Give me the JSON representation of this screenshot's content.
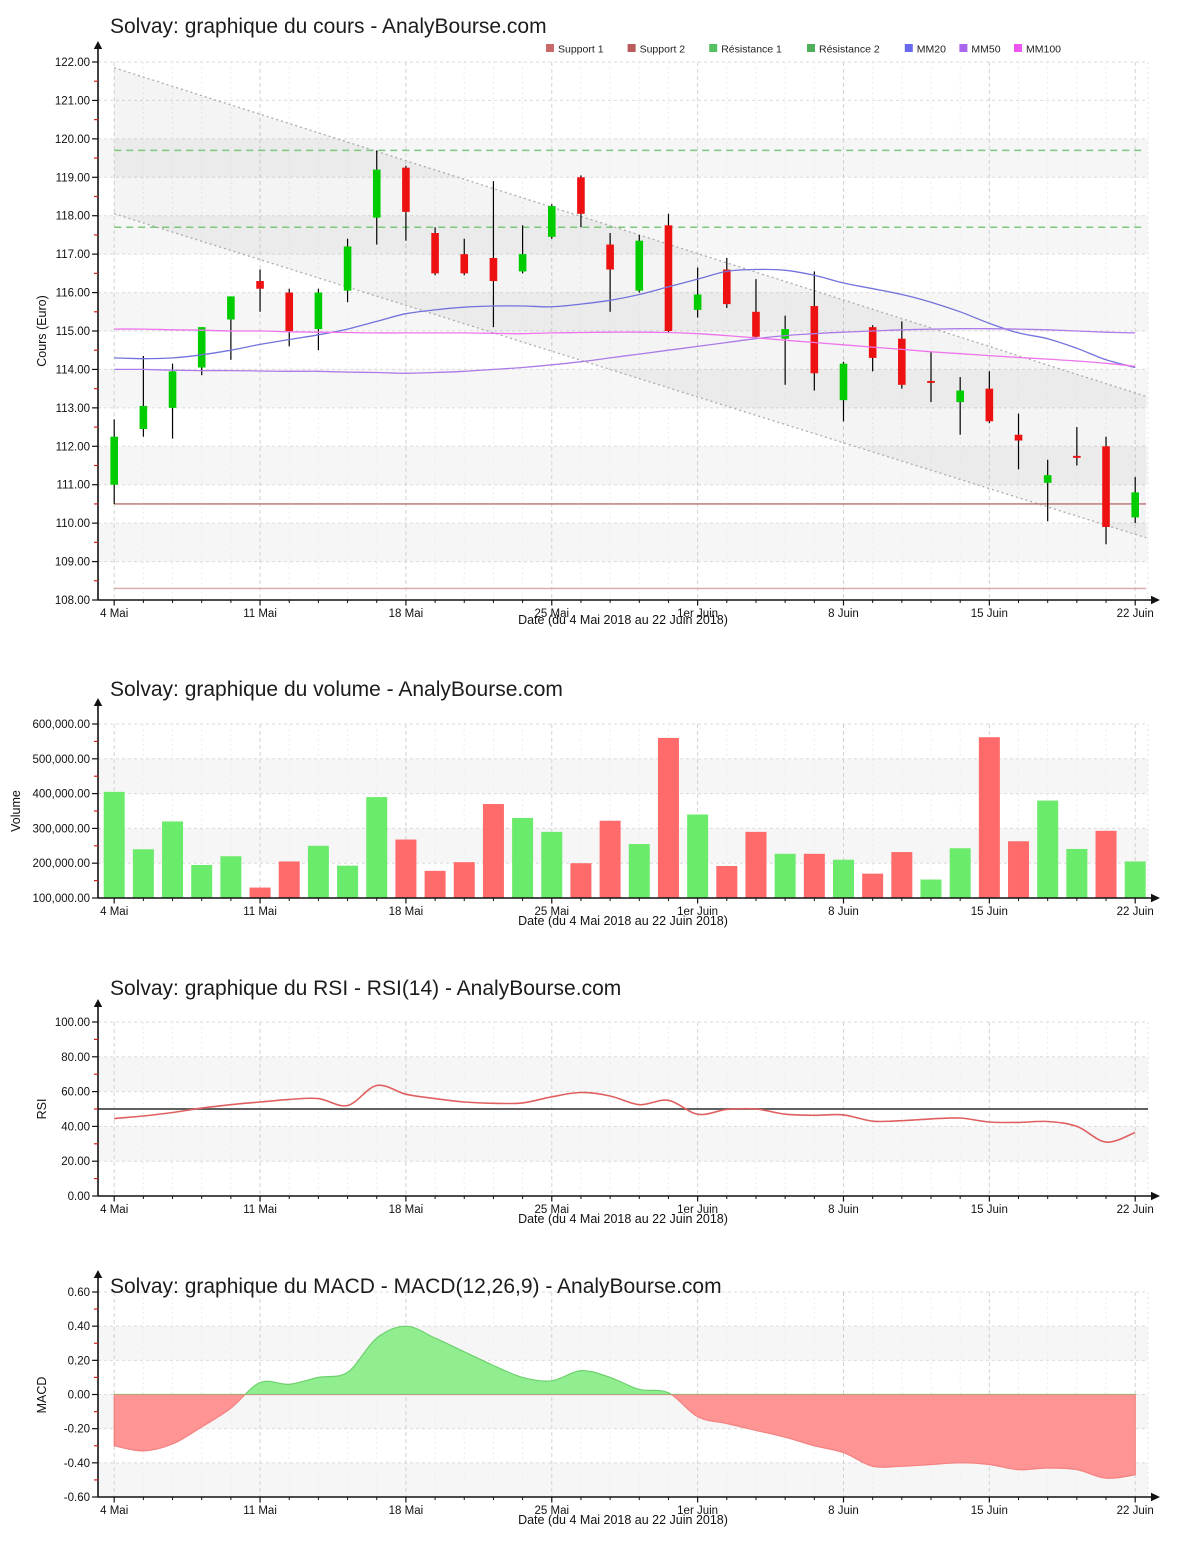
{
  "page": {
    "background": "#ffffff"
  },
  "x_axis": {
    "title": "Date (du 4 Mai 2018 au 22 Juin 2018)",
    "tick_labels": [
      "4 Mai",
      "11 Mai",
      "18 Mai",
      "25 Mai",
      "1er Juin",
      "8 Juin",
      "15 Juin",
      "22 Juin"
    ],
    "tick_indices": [
      0,
      5,
      10,
      15,
      20,
      25,
      30,
      35
    ],
    "points": 36
  },
  "colors": {
    "candle_up": "#00CC00",
    "candle_down": "#EE1111",
    "volume_up": "#6BEB6B",
    "volume_down": "#FF6B6B",
    "mm20": "#7272DD",
    "mm50": "#AB7BE8",
    "mm100": "#EE74EA",
    "support1": "#B97272",
    "support2": "#D8A8A8",
    "resistance": "#7CC87C",
    "rsi_line": "#E06060",
    "rsi_midline": "#4A4A4A",
    "macd_pos_fill": "#90EE90",
    "macd_pos_edge": "#6DD06D",
    "macd_neg_fill": "#FF9494",
    "macd_neg_edge": "#F58080",
    "axis": "#111111",
    "minor_tick": "#CC2222",
    "grid": "#DBDBDB",
    "band": "rgba(0,0,0,0.035)",
    "channel_fill": "rgba(0,0,0,0.045)",
    "channel_line": "#ABABAB"
  },
  "chart_data": [
    {
      "type": "candlestick",
      "title": "Solvay: graphique du cours - AnalyBourse.com",
      "ylabel": "Cours (Euro)",
      "ylim": [
        108,
        122
      ],
      "ytick_step": 1,
      "ytick_labels": [
        "108.00",
        "109.00",
        "110.00",
        "111.00",
        "112.00",
        "113.00",
        "114.00",
        "115.00",
        "116.00",
        "117.00",
        "118.00",
        "119.00",
        "120.00",
        "121.00",
        "122.00"
      ],
      "legend": [
        {
          "label": "Support 1",
          "color": "#C96A6A"
        },
        {
          "label": "Support 2",
          "color": "#B85C5C"
        },
        {
          "label": "Résistance 1",
          "color": "#55C060"
        },
        {
          "label": "Résistance 2",
          "color": "#4FAF5A"
        },
        {
          "label": "MM20",
          "color": "#6A6AEE"
        },
        {
          "label": "MM50",
          "color": "#AA66EE"
        },
        {
          "label": "MM100",
          "color": "#EE55EE"
        }
      ],
      "series": {
        "open": [
          111.0,
          112.45,
          113.0,
          114.05,
          115.3,
          116.3,
          116.0,
          115.05,
          116.05,
          117.95,
          119.25,
          117.55,
          117.0,
          116.9,
          116.55,
          117.45,
          119.0,
          117.25,
          116.05,
          117.75,
          115.55,
          116.6,
          115.5,
          114.8,
          115.65,
          113.2,
          115.1,
          114.8,
          113.7,
          113.15,
          113.5,
          112.3,
          111.05,
          111.75,
          112.0,
          110.15
        ],
        "high": [
          112.7,
          114.35,
          114.15,
          115.1,
          115.9,
          116.6,
          116.1,
          116.1,
          117.4,
          119.7,
          119.3,
          117.7,
          117.4,
          118.9,
          117.75,
          118.3,
          119.05,
          117.55,
          117.5,
          118.05,
          116.65,
          116.9,
          116.35,
          115.4,
          116.55,
          114.2,
          115.15,
          115.25,
          114.45,
          113.8,
          113.95,
          112.85,
          111.65,
          112.5,
          112.25,
          111.2
        ],
        "low": [
          110.5,
          112.25,
          112.2,
          113.85,
          114.25,
          115.5,
          114.6,
          114.5,
          115.75,
          117.25,
          117.35,
          116.45,
          116.45,
          115.1,
          116.5,
          117.4,
          117.7,
          115.5,
          116.0,
          114.95,
          115.35,
          115.6,
          114.8,
          113.6,
          113.45,
          112.65,
          113.95,
          113.5,
          113.15,
          112.3,
          112.6,
          111.4,
          110.05,
          111.5,
          109.45,
          110.0
        ],
        "close": [
          112.25,
          113.05,
          113.95,
          115.1,
          115.9,
          116.1,
          115.0,
          116.0,
          117.2,
          119.2,
          118.1,
          116.5,
          116.5,
          116.3,
          117.0,
          118.25,
          118.05,
          116.6,
          117.35,
          115.0,
          115.95,
          115.7,
          114.85,
          115.05,
          113.9,
          114.15,
          114.3,
          113.6,
          113.65,
          113.45,
          112.65,
          112.15,
          111.25,
          111.7,
          109.9,
          110.8
        ],
        "mm20": [
          114.3,
          114.28,
          114.3,
          114.38,
          114.5,
          114.65,
          114.78,
          114.9,
          115.05,
          115.25,
          115.45,
          115.55,
          115.62,
          115.65,
          115.65,
          115.63,
          115.7,
          115.8,
          115.95,
          116.15,
          116.35,
          116.55,
          116.6,
          116.58,
          116.45,
          116.25,
          116.1,
          115.95,
          115.75,
          115.5,
          115.2,
          114.95,
          114.8,
          114.55,
          114.25,
          114.05
        ],
        "mm50": [
          114.0,
          114.0,
          113.98,
          113.97,
          113.97,
          113.96,
          113.95,
          113.95,
          113.93,
          113.92,
          113.9,
          113.92,
          113.95,
          114.0,
          114.05,
          114.12,
          114.2,
          114.3,
          114.4,
          114.5,
          114.6,
          114.7,
          114.8,
          114.88,
          114.93,
          114.97,
          115.0,
          115.03,
          115.05,
          115.06,
          115.06,
          115.05,
          115.03,
          115.0,
          114.97,
          114.95
        ],
        "mm100": [
          115.05,
          115.05,
          115.03,
          115.02,
          115.0,
          115.0,
          114.98,
          114.97,
          114.96,
          114.95,
          114.95,
          114.95,
          114.95,
          114.94,
          114.93,
          114.95,
          114.96,
          114.97,
          114.97,
          114.96,
          114.93,
          114.88,
          114.82,
          114.76,
          114.7,
          114.64,
          114.58,
          114.52,
          114.46,
          114.41,
          114.36,
          114.31,
          114.27,
          114.22,
          114.16,
          114.08
        ]
      },
      "levels": {
        "support1": 110.5,
        "support2": 108.3,
        "resistance1": 119.7,
        "resistance2": 117.7
      },
      "channel": {
        "upper_start": 121.85,
        "upper_end": 113.3,
        "lower_start": 118.05,
        "lower_end": 109.62
      }
    },
    {
      "type": "bar",
      "title": "Solvay: graphique du volume - AnalyBourse.com",
      "ylabel": "Volume",
      "ylim": [
        100000,
        600000
      ],
      "ytick_step": 100000,
      "ytick_labels": [
        "100,000.00",
        "200,000.00",
        "300,000.00",
        "400,000.00",
        "500,000.00",
        "600,000.00"
      ],
      "values": [
        405000,
        240000,
        320000,
        195000,
        220000,
        130000,
        205000,
        250000,
        193000,
        390000,
        268000,
        178000,
        203000,
        370000,
        330000,
        290000,
        200000,
        322000,
        255000,
        560000,
        340000,
        192000,
        290000,
        227000,
        227000,
        210000,
        170000,
        232000,
        153000,
        243000,
        562000,
        263000,
        380000,
        241000,
        293000,
        205000
      ],
      "directions": [
        "up",
        "up",
        "up",
        "up",
        "up",
        "down",
        "down",
        "up",
        "up",
        "up",
        "down",
        "down",
        "down",
        "down",
        "up",
        "up",
        "down",
        "down",
        "up",
        "down",
        "up",
        "down",
        "down",
        "up",
        "down",
        "up",
        "down",
        "down",
        "up",
        "up",
        "down",
        "down",
        "up",
        "up",
        "down",
        "up"
      ]
    },
    {
      "type": "line",
      "title": "Solvay: graphique du RSI - RSI(14) - AnalyBourse.com",
      "ylabel": "RSI",
      "ylim": [
        0,
        100
      ],
      "ytick_step": 20,
      "ytick_labels": [
        "0.00",
        "20.00",
        "40.00",
        "60.00",
        "80.00",
        "100.00"
      ],
      "midline": 50,
      "values": [
        44.5,
        46.0,
        48.0,
        50.5,
        52.5,
        54.0,
        55.5,
        56.0,
        52.0,
        63.5,
        58.5,
        56.0,
        54.0,
        53.3,
        53.5,
        57.0,
        59.5,
        57.5,
        52.5,
        55.0,
        47.0,
        49.7,
        50.0,
        47.0,
        46.4,
        46.6,
        43.0,
        43.3,
        44.3,
        44.8,
        42.5,
        42.3,
        42.8,
        40.0,
        31.0,
        36.5
      ]
    },
    {
      "type": "area",
      "title": "Solvay: graphique du MACD - MACD(12,26,9) - AnalyBourse.com",
      "ylabel": "MACD",
      "ylim": [
        -0.6,
        0.6
      ],
      "ytick_step": 0.2,
      "ytick_labels": [
        "-0.60",
        "-0.40",
        "-0.20",
        "0.00",
        "0.20",
        "0.40",
        "0.60"
      ],
      "values": [
        -0.3,
        -0.33,
        -0.29,
        -0.19,
        -0.08,
        0.07,
        0.06,
        0.1,
        0.13,
        0.33,
        0.4,
        0.33,
        0.25,
        0.17,
        0.1,
        0.08,
        0.14,
        0.1,
        0.03,
        0.01,
        -0.13,
        -0.17,
        -0.21,
        -0.25,
        -0.3,
        -0.34,
        -0.42,
        -0.42,
        -0.41,
        -0.4,
        -0.41,
        -0.44,
        -0.43,
        -0.44,
        -0.49,
        -0.47
      ]
    }
  ]
}
